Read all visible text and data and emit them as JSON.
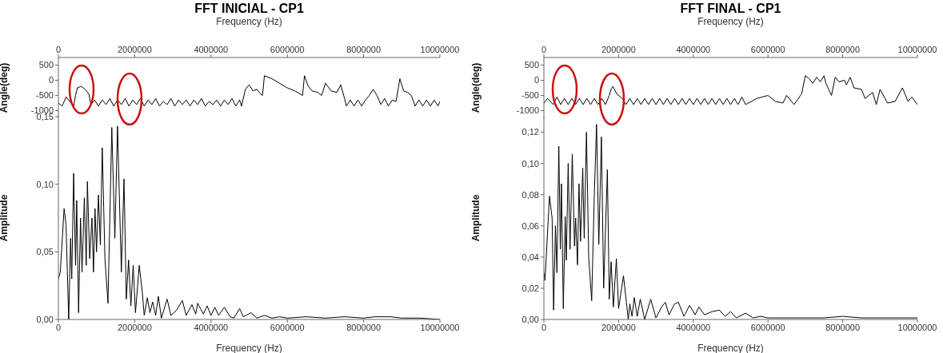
{
  "chart_data": [
    {
      "type": "line",
      "title": "FFT INICIAL - CP1",
      "xlabel": "Frequency (Hz)",
      "ylabel": "Angle(deg)",
      "xlim": [
        0,
        10000000
      ],
      "xticks": [
        0,
        2000000,
        4000000,
        6000000,
        8000000,
        10000000
      ],
      "ylim": [
        -1250,
        750
      ],
      "yticks": [
        -1000,
        -500,
        0,
        500
      ],
      "marker": "none",
      "line_style": "solid",
      "series": [
        {
          "color": "#000000",
          "x": [
            0,
            100000,
            200000,
            300000,
            400000,
            450000,
            500000,
            600000,
            700000,
            800000,
            850000,
            950000,
            1050000,
            1150000,
            1250000,
            1350000,
            1450000,
            1550000,
            1650000,
            1750000,
            1850000,
            1950000,
            2050000,
            2150000,
            2250000,
            2350000,
            2450000,
            2550000,
            2650000,
            2750000,
            2850000,
            2950000,
            3050000,
            3150000,
            3250000,
            3350000,
            3450000,
            3550000,
            3650000,
            3750000,
            3850000,
            3950000,
            4050000,
            4150000,
            4250000,
            4350000,
            4450000,
            4550000,
            4650000,
            4750000,
            4800000,
            4900000,
            5000000,
            5100000,
            5200000,
            5300000,
            5350000,
            5400000,
            5600000,
            5800000,
            6000000,
            6200000,
            6400000,
            6450000,
            6550000,
            6650000,
            6800000,
            6900000,
            7000000,
            7150000,
            7300000,
            7400000,
            7500000,
            7550000,
            7650000,
            7750000,
            7850000,
            7950000,
            8050000,
            8150000,
            8250000,
            8350000,
            8450000,
            8550000,
            8650000,
            8750000,
            8850000,
            8950000,
            9050000,
            9150000,
            9250000,
            9350000,
            9450000,
            9550000,
            9650000,
            9750000,
            9850000,
            9950000,
            10000000
          ],
          "values": [
            -750,
            -850,
            -550,
            -700,
            -850,
            -500,
            -250,
            -200,
            -300,
            -450,
            -800,
            -650,
            -850,
            -650,
            -800,
            -600,
            -850,
            -650,
            -800,
            -600,
            -850,
            -650,
            -800,
            -600,
            -850,
            -650,
            -800,
            -600,
            -850,
            -700,
            -800,
            -600,
            -850,
            -650,
            -800,
            -650,
            -850,
            -650,
            -800,
            -600,
            -850,
            -700,
            -800,
            -650,
            -850,
            -650,
            -800,
            -600,
            -850,
            -650,
            -850,
            -300,
            -150,
            -350,
            -300,
            -450,
            -500,
            150,
            50,
            -100,
            -250,
            -350,
            -500,
            150,
            -200,
            -350,
            -400,
            -500,
            -100,
            -350,
            -400,
            -150,
            -600,
            -850,
            -650,
            -850,
            -650,
            -850,
            -650,
            -500,
            -300,
            -500,
            -800,
            -600,
            -850,
            -650,
            -700,
            50,
            -350,
            -400,
            -500,
            -850,
            -650,
            -850,
            -650,
            -850,
            -650,
            -850,
            -700
          ]
        }
      ]
    },
    {
      "type": "line",
      "xlabel": "Frequency (Hz)",
      "ylabel": "Amplitude",
      "xlim": [
        0,
        10000000
      ],
      "xticks": [
        0,
        2000000,
        4000000,
        6000000,
        8000000,
        10000000
      ],
      "ylim": [
        0,
        0.15
      ],
      "yticks": [
        {
          "value": 0,
          "label": "0,00"
        },
        {
          "value": 0.05,
          "label": "0,05"
        },
        {
          "value": 0.1,
          "label": "0,10"
        },
        {
          "value": 0.15,
          "label": "0,15"
        }
      ],
      "marker": "none",
      "line_style": "solid",
      "series": [
        {
          "color": "#000000",
          "x": [
            0,
            50000,
            150000,
            200000,
            270000,
            320000,
            350000,
            400000,
            450000,
            480000,
            530000,
            580000,
            620000,
            680000,
            730000,
            760000,
            820000,
            880000,
            920000,
            960000,
            1000000,
            1050000,
            1100000,
            1150000,
            1220000,
            1300000,
            1400000,
            1480000,
            1550000,
            1650000,
            1720000,
            1780000,
            1840000,
            1900000,
            1960000,
            2020000,
            2120000,
            2200000,
            2250000,
            2330000,
            2400000,
            2470000,
            2550000,
            2620000,
            2700000,
            2850000,
            2950000,
            3100000,
            3250000,
            3350000,
            3500000,
            3600000,
            3650000,
            3800000,
            3900000,
            4000000,
            4100000,
            4200000,
            4350000,
            4500000,
            4600000,
            4750000,
            4850000,
            5050000,
            5200000,
            5400000,
            5600000,
            5800000,
            6000000,
            6500000,
            7000000,
            7500000,
            8000000,
            8300000,
            8700000,
            9000000,
            9500000,
            10000000
          ],
          "values": [
            0.03,
            0.035,
            0.082,
            0.07,
            0,
            0.06,
            0.03,
            0.108,
            0.04,
            0.088,
            0.005,
            0.075,
            0.035,
            0.09,
            0.04,
            0.102,
            0.045,
            0.075,
            0.035,
            0.082,
            0.05,
            0.092,
            0.055,
            0.127,
            0.045,
            0.012,
            0.142,
            0.06,
            0.143,
            0.035,
            0.104,
            0.015,
            0.044,
            0.01,
            0.04,
            0.005,
            0.04,
            0.02,
            0.003,
            0.016,
            0.005,
            0.013,
            0.003,
            0.017,
            0.001,
            0.015,
            0.003,
            0.007,
            0.014,
            0.003,
            0.011,
            0.004,
            0.012,
            0.004,
            0.01,
            0.003,
            0.009,
            0.003,
            0.009,
            0.002,
            0.001,
            0.008,
            0.002,
            0.005,
            0.001,
            0.003,
            0.001,
            0.002,
            0.001,
            0.002,
            0.001,
            0.002,
            0.001,
            0.002,
            0.002,
            0.001,
            0.001,
            0
          ]
        }
      ]
    },
    {
      "type": "line",
      "title": "FFT FINAL - CP1",
      "xlabel": "Frequency (Hz)",
      "ylabel": "Angle(deg)",
      "xlim": [
        0,
        10000000
      ],
      "xticks": [
        0,
        2000000,
        4000000,
        6000000,
        8000000,
        10000000
      ],
      "ylim": [
        -1250,
        750
      ],
      "yticks": [
        -1000,
        -500,
        0,
        500
      ],
      "marker": "none",
      "line_style": "solid",
      "series": [
        {
          "color": "#000000",
          "x": [
            0,
            100000,
            250000,
            350000,
            450000,
            550000,
            650000,
            750000,
            850000,
            950000,
            1050000,
            1150000,
            1250000,
            1350000,
            1450000,
            1550000,
            1650000,
            1750000,
            1800000,
            1850000,
            1950000,
            2100000,
            2200000,
            2300000,
            2400000,
            2500000,
            2600000,
            2700000,
            2800000,
            2900000,
            3000000,
            3100000,
            3200000,
            3300000,
            3400000,
            3500000,
            3600000,
            3700000,
            3800000,
            3900000,
            4000000,
            4100000,
            4200000,
            4300000,
            4400000,
            4500000,
            4600000,
            4700000,
            4800000,
            4900000,
            5000000,
            5100000,
            5200000,
            5300000,
            5400000,
            5700000,
            6000000,
            6200000,
            6400000,
            6500000,
            6700000,
            6900000,
            7000000,
            7100000,
            7200000,
            7300000,
            7400000,
            7500000,
            7550000,
            7700000,
            7800000,
            7900000,
            8050000,
            8100000,
            8200000,
            8300000,
            8500000,
            8600000,
            8800000,
            8900000,
            9000000,
            9200000,
            9400000,
            9600000,
            9750000,
            9850000,
            10000000
          ],
          "values": [
            -750,
            -600,
            -800,
            -550,
            -800,
            -600,
            -800,
            -600,
            -800,
            -600,
            -800,
            -600,
            -800,
            -600,
            -800,
            -600,
            -800,
            -500,
            -300,
            -200,
            -450,
            -600,
            -800,
            -600,
            -800,
            -600,
            -800,
            -600,
            -800,
            -600,
            -800,
            -600,
            -800,
            -600,
            -800,
            -600,
            -800,
            -600,
            -800,
            -600,
            -800,
            -600,
            -800,
            -600,
            -800,
            -600,
            -800,
            -600,
            -800,
            -600,
            -800,
            -600,
            -800,
            -550,
            -800,
            -600,
            -500,
            -700,
            -750,
            -500,
            -800,
            -450,
            150,
            50,
            -100,
            100,
            -50,
            150,
            -100,
            -500,
            100,
            -50,
            0,
            -150,
            100,
            -250,
            -300,
            -600,
            -400,
            -800,
            -300,
            -750,
            -700,
            -250,
            -700,
            -550,
            -800
          ]
        }
      ]
    },
    {
      "type": "line",
      "xlabel": "Frequency (Hz)",
      "ylabel": "Amplitude",
      "xlim": [
        0,
        10000000
      ],
      "xticks": [
        0,
        2000000,
        4000000,
        6000000,
        8000000,
        10000000
      ],
      "ylim": [
        0,
        0.13
      ],
      "yticks": [
        {
          "value": 0,
          "label": "0,00"
        },
        {
          "value": 0.02,
          "label": "0,02"
        },
        {
          "value": 0.04,
          "label": "0,04"
        },
        {
          "value": 0.06,
          "label": "0,06"
        },
        {
          "value": 0.08,
          "label": "0,08"
        },
        {
          "value": 0.1,
          "label": "0,10"
        },
        {
          "value": 0.12,
          "label": "0,12"
        }
      ],
      "marker": "none",
      "line_style": "solid",
      "series": [
        {
          "color": "#000000",
          "x": [
            0,
            30000,
            150000,
            220000,
            260000,
            310000,
            350000,
            400000,
            440000,
            470000,
            520000,
            570000,
            600000,
            650000,
            700000,
            760000,
            820000,
            850000,
            900000,
            940000,
            980000,
            1040000,
            1080000,
            1140000,
            1200000,
            1280000,
            1350000,
            1410000,
            1470000,
            1540000,
            1600000,
            1700000,
            1750000,
            1800000,
            1860000,
            1940000,
            2000000,
            2130000,
            2260000,
            2300000,
            2360000,
            2420000,
            2500000,
            2580000,
            2700000,
            2860000,
            3000000,
            3150000,
            3250000,
            3350000,
            3500000,
            3600000,
            3750000,
            3900000,
            4050000,
            4150000,
            4300000,
            4500000,
            4700000,
            4850000,
            5000000,
            5150000,
            5400000,
            5600000,
            5800000,
            6000000,
            6500000,
            7000000,
            7500000,
            8000000,
            8500000,
            9000000,
            9500000,
            10000000
          ],
          "values": [
            0.03,
            0.025,
            0.079,
            0.065,
            0.006,
            0.06,
            0.03,
            0.111,
            0.045,
            0.087,
            0.007,
            0.066,
            0.038,
            0.1,
            0.045,
            0.106,
            0.047,
            0.065,
            0.035,
            0.087,
            0.05,
            0.097,
            0.052,
            0.12,
            0.04,
            0.012,
            0.08,
            0.125,
            0.048,
            0.117,
            0.02,
            0.096,
            0.013,
            0.037,
            0.008,
            0.039,
            0.007,
            0.028,
            0,
            0.01,
            0.002,
            0.014,
            0.002,
            0.013,
            0,
            0.013,
            0.001,
            0.008,
            0.011,
            0.003,
            0.01,
            0.011,
            0.002,
            0.009,
            0.003,
            0.008,
            0.003,
            0.005,
            0.006,
            0.002,
            0.005,
            0.001,
            0.004,
            0.001,
            0.002,
            0.001,
            0.001,
            0.001,
            0.001,
            0.002,
            0.001,
            0.001,
            0.001,
            0.001
          ]
        }
      ]
    }
  ]
}
